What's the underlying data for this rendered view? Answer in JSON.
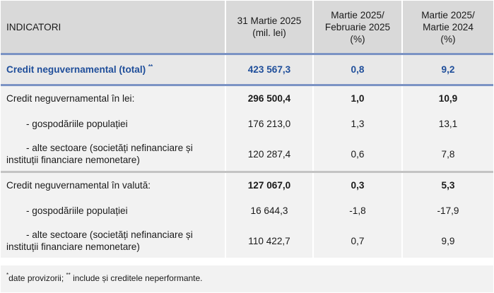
{
  "header": {
    "indicator": "INDICATORI",
    "col2_line1": "31 Martie 2025",
    "col2_line2": "(mil. lei)",
    "col3_line1": "Martie 2025/",
    "col3_line2": "Februarie 2025",
    "col3_line3": "(%)",
    "col4_line1": "Martie 2025/",
    "col4_line2": "Martie 2024",
    "col4_line3": "(%)"
  },
  "total": {
    "label": "Credit neguvernamental (total)",
    "mark": "**",
    "value": "423 567,3",
    "mom": "0,8",
    "yoy": "9,2"
  },
  "lei": {
    "label": "Credit neguvernamental în lei:",
    "value": "296 500,4",
    "mom": "1,0",
    "yoy": "10,9",
    "households": {
      "label": "- gospodăriile populației",
      "value": "176 213,0",
      "mom": "1,3",
      "yoy": "13,1"
    },
    "other": {
      "label_line1": "- alte sectoare (societăți nefinanciare și",
      "label_line2": "instituții financiare nemonetare)",
      "value": "120 287,4",
      "mom": "0,6",
      "yoy": "7,8"
    }
  },
  "fx": {
    "label": "Credit neguvernamental în valută:",
    "value": "127 067,0",
    "mom": "0,3",
    "yoy": "5,3",
    "households": {
      "label": "- gospodăriile populației",
      "value": "16 644,3",
      "mom": "-1,8",
      "yoy": "-17,9"
    },
    "other": {
      "label_line1": "- alte sectoare (societăți nefinanciare și",
      "label_line2": "instituții financiare nemonetare)",
      "value": "110 422,7",
      "mom": "0,7",
      "yoy": "9,9"
    }
  },
  "footnote": {
    "mark1": "*",
    "text1": "date provizorii; ",
    "mark2": "**",
    "text2": " include și creditele neperformante."
  }
}
